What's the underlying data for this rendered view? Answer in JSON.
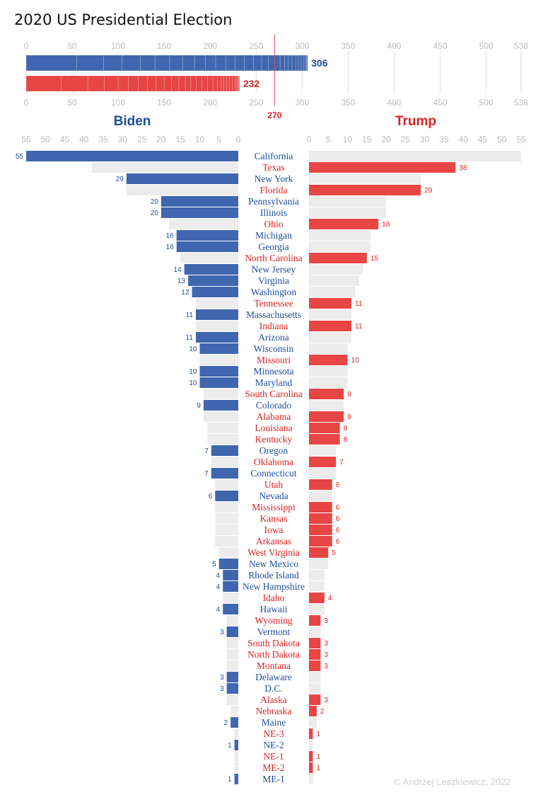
{
  "title": "2020 US Presidential Election",
  "credit": "© Andrzej Leszkiewicz, 2022",
  "colors": {
    "biden": "#3f66ae",
    "trump": "#e84545",
    "biden_text": "#1f4e9c",
    "trump_text": "#dd2222",
    "background_bar": "#ececec",
    "grid": "#dddddd",
    "tick": "#bbbbbb"
  },
  "chart_data": [
    {
      "type": "bar",
      "orientation": "horizontal-stacked",
      "xlim": [
        0,
        538
      ],
      "ticks": [
        0,
        50,
        100,
        150,
        200,
        250,
        300,
        350,
        400,
        450,
        500,
        538
      ],
      "threshold": {
        "value": 270,
        "label": "270"
      },
      "series": [
        {
          "name": "Biden",
          "total": 306,
          "label": "306"
        },
        {
          "name": "Trump",
          "total": 232,
          "label": "232"
        }
      ]
    },
    {
      "type": "bar",
      "orientation": "butterfly",
      "left_title": "Biden",
      "right_title": "Trump",
      "xlim": [
        0,
        55
      ],
      "ticks": [
        55,
        50,
        45,
        40,
        35,
        30,
        25,
        20,
        15,
        10,
        5,
        0
      ],
      "right_ticks": [
        0,
        5,
        10,
        15,
        20,
        25,
        30,
        35,
        40,
        45,
        50,
        55
      ],
      "rows": [
        {
          "state": "California",
          "votes": 55,
          "winner": "Biden"
        },
        {
          "state": "Texas",
          "votes": 38,
          "winner": "Trump"
        },
        {
          "state": "New York",
          "votes": 29,
          "winner": "Biden"
        },
        {
          "state": "Florida",
          "votes": 29,
          "winner": "Trump"
        },
        {
          "state": "Pennsylvania",
          "votes": 20,
          "winner": "Biden"
        },
        {
          "state": "Illinois",
          "votes": 20,
          "winner": "Biden"
        },
        {
          "state": "Ohio",
          "votes": 18,
          "winner": "Trump"
        },
        {
          "state": "Michigan",
          "votes": 16,
          "winner": "Biden"
        },
        {
          "state": "Georgia",
          "votes": 16,
          "winner": "Biden"
        },
        {
          "state": "North Carolina",
          "votes": 15,
          "winner": "Trump"
        },
        {
          "state": "New Jersey",
          "votes": 14,
          "winner": "Biden"
        },
        {
          "state": "Virginia",
          "votes": 13,
          "winner": "Biden"
        },
        {
          "state": "Washington",
          "votes": 12,
          "winner": "Biden"
        },
        {
          "state": "Tennessee",
          "votes": 11,
          "winner": "Trump"
        },
        {
          "state": "Massachusetts",
          "votes": 11,
          "winner": "Biden"
        },
        {
          "state": "Indiana",
          "votes": 11,
          "winner": "Trump"
        },
        {
          "state": "Arizona",
          "votes": 11,
          "winner": "Biden"
        },
        {
          "state": "Wisconsin",
          "votes": 10,
          "winner": "Biden"
        },
        {
          "state": "Missouri",
          "votes": 10,
          "winner": "Trump"
        },
        {
          "state": "Minnesota",
          "votes": 10,
          "winner": "Biden"
        },
        {
          "state": "Maryland",
          "votes": 10,
          "winner": "Biden"
        },
        {
          "state": "South Carolina",
          "votes": 9,
          "winner": "Trump"
        },
        {
          "state": "Colorado",
          "votes": 9,
          "winner": "Biden"
        },
        {
          "state": "Alabama",
          "votes": 9,
          "winner": "Trump"
        },
        {
          "state": "Louisiana",
          "votes": 8,
          "winner": "Trump"
        },
        {
          "state": "Kentucky",
          "votes": 8,
          "winner": "Trump"
        },
        {
          "state": "Oregon",
          "votes": 7,
          "winner": "Biden"
        },
        {
          "state": "Oklahoma",
          "votes": 7,
          "winner": "Trump"
        },
        {
          "state": "Connecticut",
          "votes": 7,
          "winner": "Biden"
        },
        {
          "state": "Utah",
          "votes": 6,
          "winner": "Trump"
        },
        {
          "state": "Nevada",
          "votes": 6,
          "winner": "Biden"
        },
        {
          "state": "Mississippi",
          "votes": 6,
          "winner": "Trump"
        },
        {
          "state": "Kansas",
          "votes": 6,
          "winner": "Trump"
        },
        {
          "state": "Iowa",
          "votes": 6,
          "winner": "Trump"
        },
        {
          "state": "Arkansas",
          "votes": 6,
          "winner": "Trump"
        },
        {
          "state": "West Virginia",
          "votes": 5,
          "winner": "Trump"
        },
        {
          "state": "New Mexico",
          "votes": 5,
          "winner": "Biden"
        },
        {
          "state": "Rhode Island",
          "votes": 4,
          "winner": "Biden"
        },
        {
          "state": "New Hampshire",
          "votes": 4,
          "winner": "Biden"
        },
        {
          "state": "Idaho",
          "votes": 4,
          "winner": "Trump"
        },
        {
          "state": "Hawaii",
          "votes": 4,
          "winner": "Biden"
        },
        {
          "state": "Wyoming",
          "votes": 3,
          "winner": "Trump"
        },
        {
          "state": "Vermont",
          "votes": 3,
          "winner": "Biden"
        },
        {
          "state": "South Dakota",
          "votes": 3,
          "winner": "Trump"
        },
        {
          "state": "North Dakota",
          "votes": 3,
          "winner": "Trump"
        },
        {
          "state": "Montana",
          "votes": 3,
          "winner": "Trump"
        },
        {
          "state": "Delaware",
          "votes": 3,
          "winner": "Biden"
        },
        {
          "state": "D.C.",
          "votes": 3,
          "winner": "Biden"
        },
        {
          "state": "Alaska",
          "votes": 3,
          "winner": "Trump"
        },
        {
          "state": "Nebraska",
          "votes": 2,
          "winner": "Trump"
        },
        {
          "state": "Maine",
          "votes": 2,
          "winner": "Biden"
        },
        {
          "state": "NE-3",
          "votes": 1,
          "winner": "Trump"
        },
        {
          "state": "NE-2",
          "votes": 1,
          "winner": "Biden"
        },
        {
          "state": "NE-1",
          "votes": 1,
          "winner": "Trump"
        },
        {
          "state": "ME-2",
          "votes": 1,
          "winner": "Trump"
        },
        {
          "state": "ME-1",
          "votes": 1,
          "winner": "Biden"
        }
      ]
    }
  ]
}
